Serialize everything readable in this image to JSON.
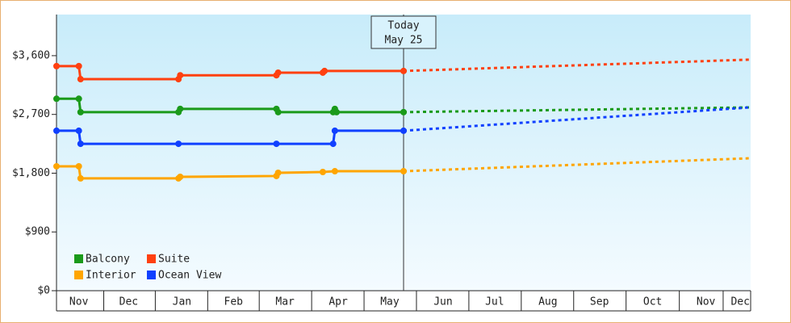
{
  "chart_data": {
    "type": "line",
    "xlim": [
      0,
      404
    ],
    "ylim": [
      0,
      4230
    ],
    "yticks": [
      {
        "value": 0,
        "label": "$0"
      },
      {
        "value": 900,
        "label": "$900"
      },
      {
        "value": 1800,
        "label": "$1,800"
      },
      {
        "value": 2700,
        "label": "$2,700"
      },
      {
        "value": 3600,
        "label": "$3,600"
      }
    ],
    "xticks": [
      {
        "value": 13,
        "label": "Nov"
      },
      {
        "value": 42,
        "label": "Dec"
      },
      {
        "value": 73,
        "label": "Jan"
      },
      {
        "value": 103,
        "label": "Feb"
      },
      {
        "value": 133,
        "label": "Mar"
      },
      {
        "value": 164,
        "label": "Apr"
      },
      {
        "value": 194,
        "label": "May"
      },
      {
        "value": 225,
        "label": "Jun"
      },
      {
        "value": 255,
        "label": "Jul"
      },
      {
        "value": 286,
        "label": "Aug"
      },
      {
        "value": 316,
        "label": "Sep"
      },
      {
        "value": 347,
        "label": "Oct"
      },
      {
        "value": 378,
        "label": "Nov"
      },
      {
        "value": 398,
        "label": "Dec"
      }
    ],
    "today": {
      "x": 202,
      "label": "Today",
      "date": "May 25"
    },
    "series": [
      {
        "name": "Balcony",
        "color": "#1a9a1a",
        "x": [
          0,
          13,
          14,
          71,
          72,
          128,
          129,
          161,
          162,
          163,
          202
        ],
        "values": [
          2940,
          2940,
          2735,
          2735,
          2785,
          2785,
          2735,
          2735,
          2785,
          2735,
          2735
        ],
        "forecast": {
          "x": [
            202,
            404
          ],
          "values": [
            2735,
            2808
          ]
        }
      },
      {
        "name": "Suite",
        "color": "#ff4010",
        "x": [
          0,
          13,
          14,
          71,
          72,
          128,
          129,
          155,
          156,
          202
        ],
        "values": [
          3440,
          3440,
          3240,
          3240,
          3300,
          3300,
          3340,
          3340,
          3365,
          3365
        ],
        "forecast": {
          "x": [
            202,
            404
          ],
          "values": [
            3365,
            3540
          ]
        }
      },
      {
        "name": "Interior",
        "color": "#ffa500",
        "x": [
          0,
          13,
          14,
          71,
          72,
          128,
          129,
          155,
          162,
          202
        ],
        "values": [
          1905,
          1905,
          1720,
          1720,
          1744,
          1757,
          1806,
          1818,
          1830,
          1830
        ],
        "forecast": {
          "x": [
            202,
            404
          ],
          "values": [
            1830,
            2029
          ]
        }
      },
      {
        "name": "Ocean View",
        "color": "#1040ff",
        "x": [
          0,
          13,
          14,
          71,
          128,
          161,
          162,
          202
        ],
        "values": [
          2450,
          2450,
          2250,
          2250,
          2250,
          2250,
          2450,
          2450
        ],
        "forecast": {
          "x": [
            202,
            404
          ],
          "values": [
            2450,
            2808
          ]
        }
      }
    ]
  }
}
